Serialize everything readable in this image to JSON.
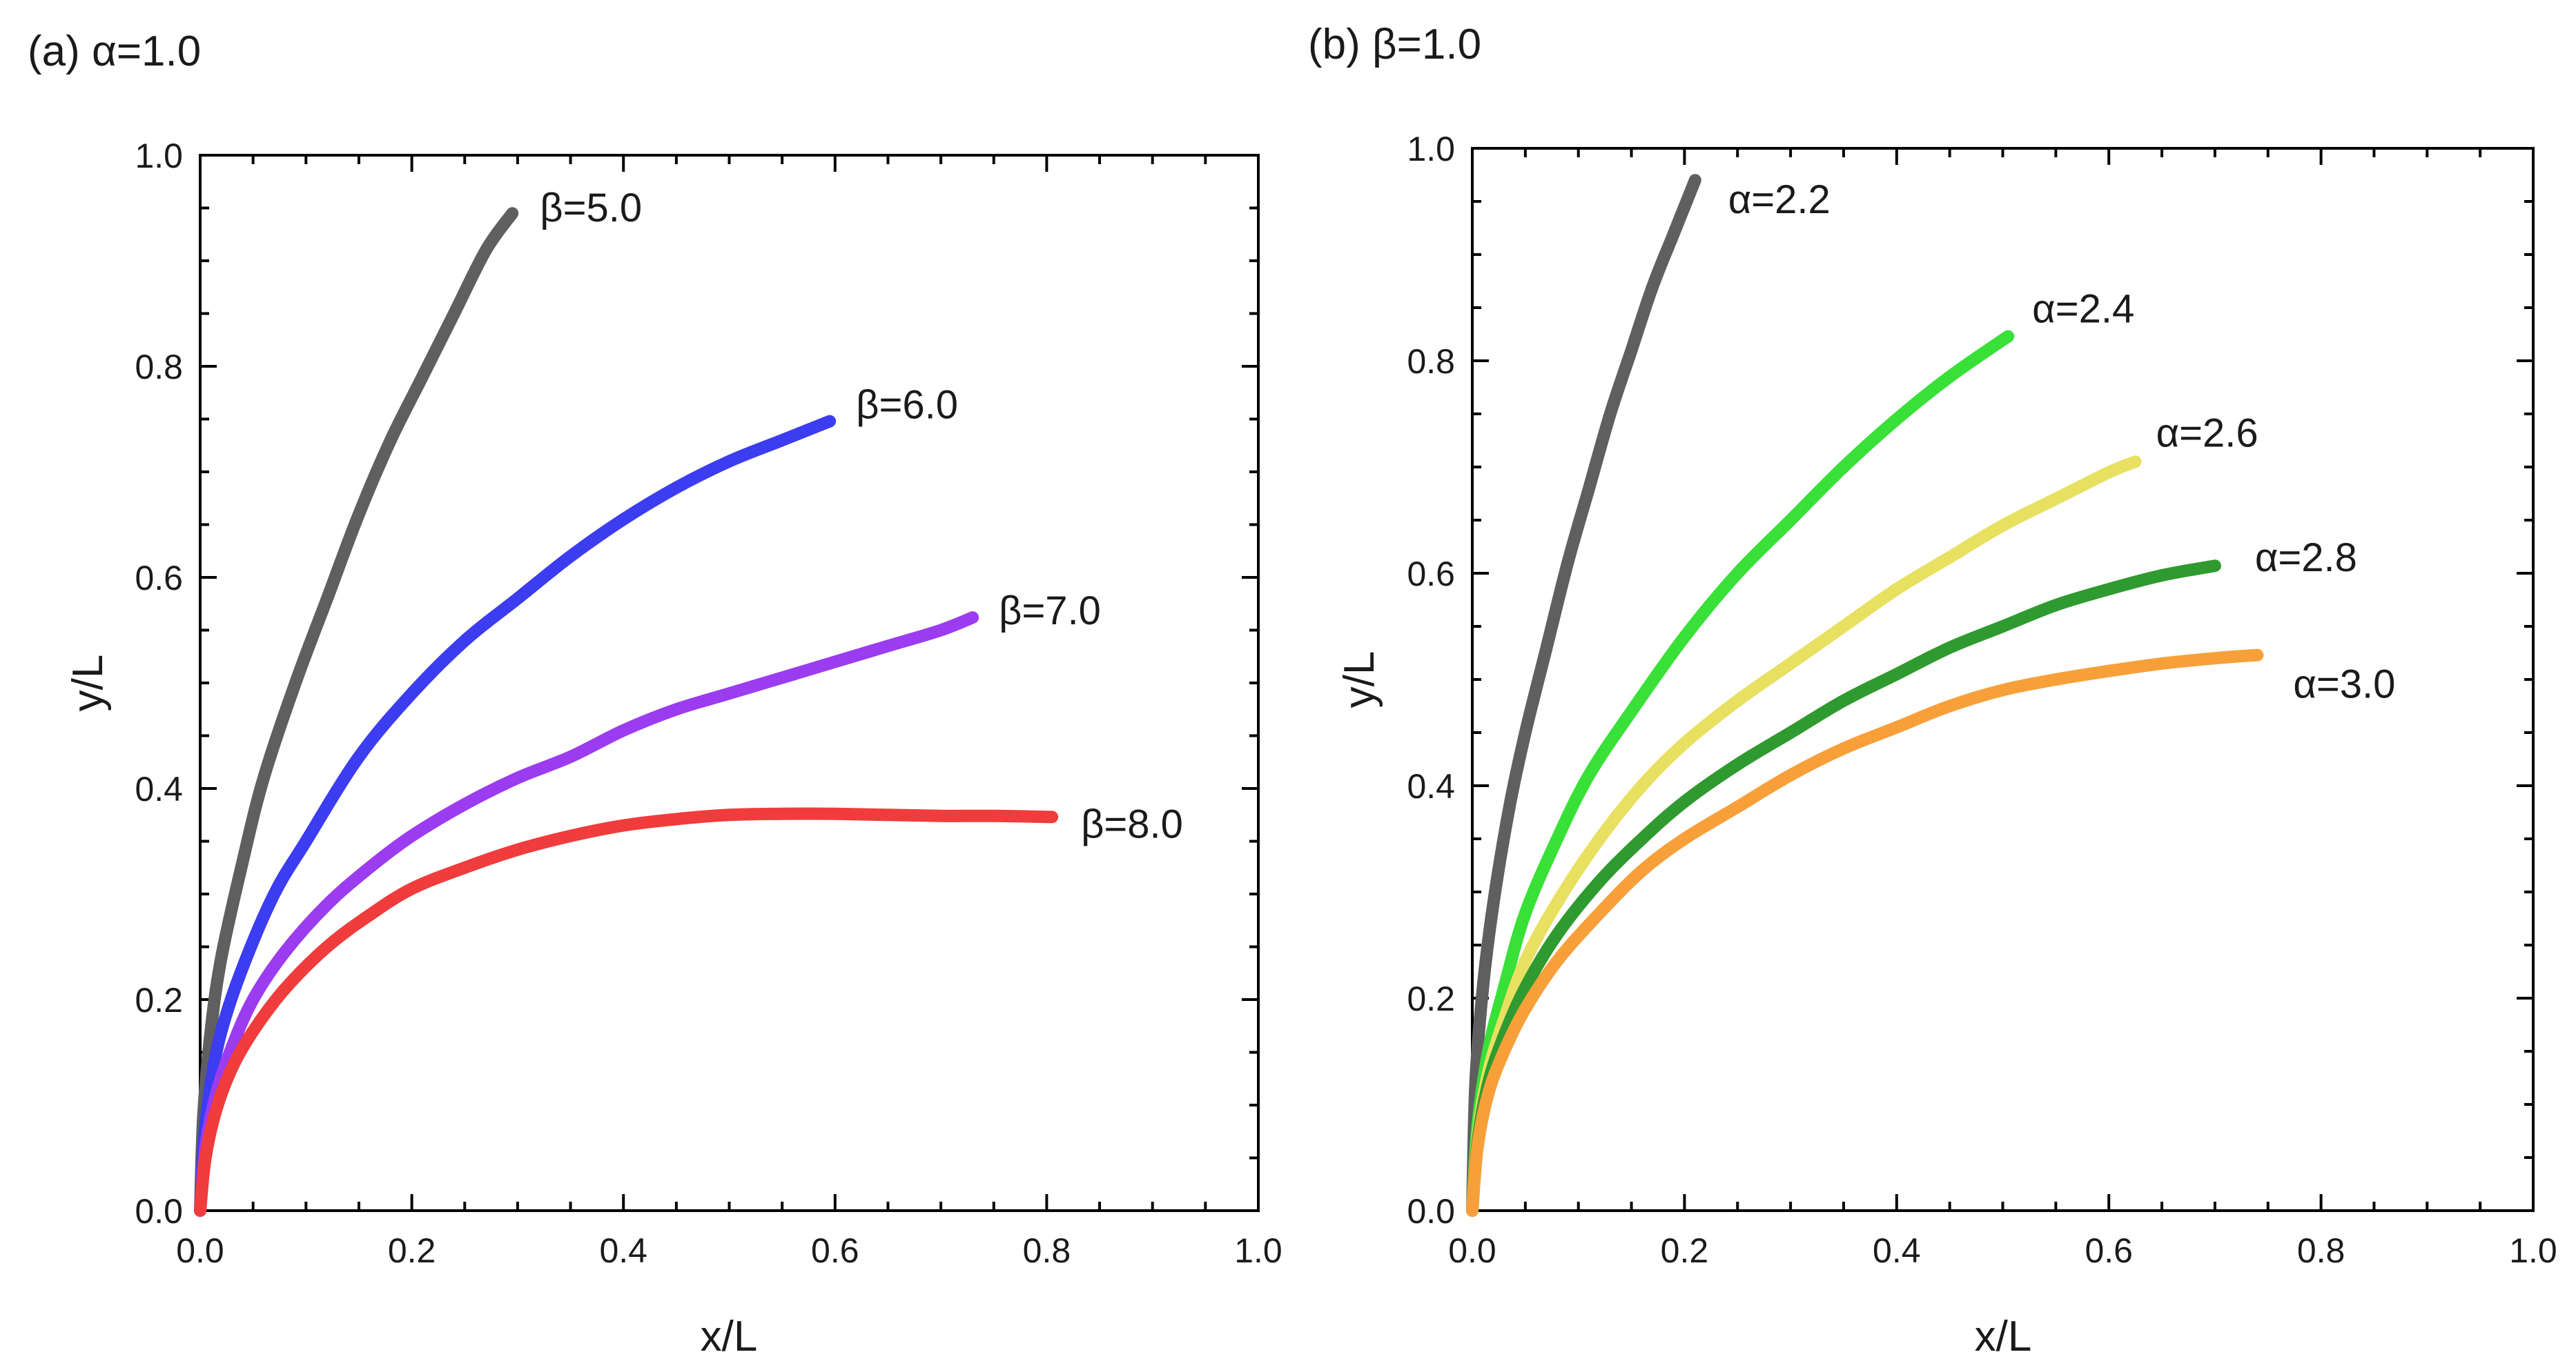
{
  "chart_data": [
    {
      "type": "line",
      "title": "(a) α=1.0",
      "xlabel": "x/L",
      "ylabel": "y/L",
      "xlim": [
        0,
        1.0
      ],
      "ylim": [
        0,
        1.0
      ],
      "xticks": [
        "0.0",
        "0.2",
        "0.4",
        "0.6",
        "0.8",
        "1.0"
      ],
      "yticks": [
        "0.0",
        "0.2",
        "0.4",
        "0.6",
        "0.8",
        "1.0"
      ],
      "grid": false,
      "series": [
        {
          "name": "β=5.0",
          "color": "#5f5f5f",
          "x": [
            0,
            0.003,
            0.01,
            0.02,
            0.04,
            0.06,
            0.09,
            0.12,
            0.15,
            0.18,
            0.21,
            0.24,
            0.27,
            0.295
          ],
          "y": [
            0,
            0.09,
            0.17,
            0.24,
            0.33,
            0.41,
            0.5,
            0.58,
            0.66,
            0.73,
            0.79,
            0.85,
            0.91,
            0.945
          ]
        },
        {
          "name": "β=6.0",
          "color": "#3c3cf0",
          "x": [
            0,
            0.004,
            0.01,
            0.02,
            0.04,
            0.07,
            0.1,
            0.15,
            0.2,
            0.25,
            0.3,
            0.35,
            0.4,
            0.45,
            0.5,
            0.55,
            0.595
          ],
          "y": [
            0,
            0.07,
            0.12,
            0.17,
            0.23,
            0.3,
            0.35,
            0.43,
            0.49,
            0.54,
            0.58,
            0.62,
            0.655,
            0.685,
            0.71,
            0.73,
            0.748
          ]
        },
        {
          "name": "β=7.0",
          "color": "#9b3cf0",
          "x": [
            0,
            0.005,
            0.015,
            0.03,
            0.05,
            0.08,
            0.12,
            0.16,
            0.2,
            0.25,
            0.3,
            0.35,
            0.4,
            0.45,
            0.5,
            0.55,
            0.6,
            0.65,
            0.7,
            0.73
          ],
          "y": [
            0,
            0.06,
            0.11,
            0.155,
            0.2,
            0.245,
            0.29,
            0.325,
            0.355,
            0.385,
            0.41,
            0.43,
            0.455,
            0.475,
            0.49,
            0.505,
            0.52,
            0.535,
            0.55,
            0.562
          ]
        },
        {
          "name": "β=8.0",
          "color": "#f03c3c",
          "x": [
            0,
            0.005,
            0.015,
            0.03,
            0.05,
            0.08,
            0.12,
            0.16,
            0.2,
            0.25,
            0.3,
            0.35,
            0.4,
            0.45,
            0.5,
            0.55,
            0.6,
            0.65,
            0.7,
            0.75,
            0.805
          ],
          "y": [
            0,
            0.05,
            0.095,
            0.135,
            0.17,
            0.21,
            0.25,
            0.28,
            0.305,
            0.325,
            0.342,
            0.355,
            0.365,
            0.371,
            0.375,
            0.376,
            0.376,
            0.375,
            0.374,
            0.374,
            0.373
          ]
        }
      ]
    },
    {
      "type": "line",
      "title": "(b) β=1.0",
      "xlabel": "x/L",
      "ylabel": "y/L",
      "xlim": [
        0,
        1.0
      ],
      "ylim": [
        0,
        1.0
      ],
      "xticks": [
        "0.0",
        "0.2",
        "0.4",
        "0.6",
        "0.8",
        "1.0"
      ],
      "yticks": [
        "0.0",
        "0.2",
        "0.4",
        "0.6",
        "0.8",
        "1.0"
      ],
      "grid": false,
      "series": [
        {
          "name": "α=2.2",
          "color": "#5f5f5f",
          "x": [
            0,
            0.003,
            0.01,
            0.02,
            0.035,
            0.05,
            0.07,
            0.09,
            0.11,
            0.13,
            0.15,
            0.17,
            0.19,
            0.21
          ],
          "y": [
            0,
            0.12,
            0.21,
            0.29,
            0.38,
            0.45,
            0.53,
            0.61,
            0.68,
            0.75,
            0.81,
            0.87,
            0.92,
            0.97
          ]
        },
        {
          "name": "α=2.4",
          "color": "#38e038",
          "x": [
            0,
            0.005,
            0.015,
            0.03,
            0.05,
            0.08,
            0.11,
            0.15,
            0.2,
            0.25,
            0.3,
            0.35,
            0.4,
            0.45,
            0.505
          ],
          "y": [
            0,
            0.08,
            0.15,
            0.21,
            0.28,
            0.35,
            0.41,
            0.47,
            0.54,
            0.6,
            0.65,
            0.7,
            0.745,
            0.785,
            0.823
          ]
        },
        {
          "name": "α=2.6",
          "color": "#e8e060",
          "x": [
            0,
            0.005,
            0.015,
            0.03,
            0.05,
            0.08,
            0.12,
            0.16,
            0.2,
            0.25,
            0.3,
            0.35,
            0.4,
            0.45,
            0.5,
            0.55,
            0.6,
            0.625
          ],
          "y": [
            0,
            0.07,
            0.13,
            0.18,
            0.235,
            0.29,
            0.35,
            0.4,
            0.44,
            0.48,
            0.515,
            0.55,
            0.585,
            0.615,
            0.645,
            0.67,
            0.695,
            0.705
          ]
        },
        {
          "name": "α=2.8",
          "color": "#2f9a2f",
          "x": [
            0,
            0.005,
            0.015,
            0.03,
            0.05,
            0.08,
            0.12,
            0.16,
            0.2,
            0.25,
            0.3,
            0.35,
            0.4,
            0.45,
            0.5,
            0.55,
            0.6,
            0.65,
            0.7
          ],
          "y": [
            0,
            0.065,
            0.12,
            0.165,
            0.21,
            0.26,
            0.31,
            0.35,
            0.385,
            0.42,
            0.45,
            0.48,
            0.505,
            0.53,
            0.55,
            0.57,
            0.585,
            0.598,
            0.607
          ]
        },
        {
          "name": "α=3.0",
          "color": "#f7a03a",
          "x": [
            0,
            0.005,
            0.015,
            0.03,
            0.05,
            0.08,
            0.12,
            0.16,
            0.2,
            0.25,
            0.3,
            0.35,
            0.4,
            0.45,
            0.5,
            0.55,
            0.6,
            0.65,
            0.7,
            0.74
          ],
          "y": [
            0,
            0.06,
            0.11,
            0.15,
            0.19,
            0.235,
            0.28,
            0.32,
            0.35,
            0.38,
            0.41,
            0.435,
            0.455,
            0.475,
            0.49,
            0.5,
            0.508,
            0.515,
            0.52,
            0.523
          ]
        }
      ]
    }
  ]
}
